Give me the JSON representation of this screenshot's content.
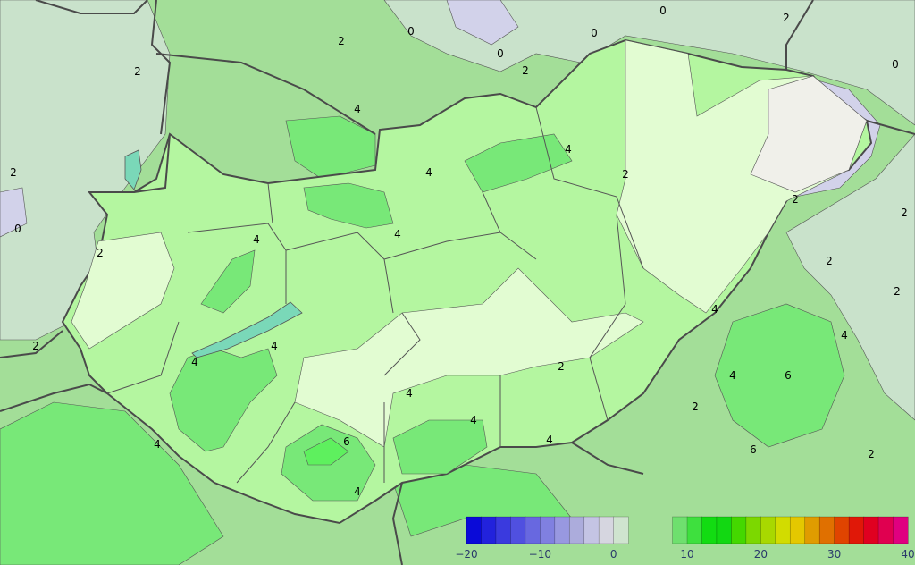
{
  "map": {
    "region": "Hungary",
    "colors": {
      "background_2_4": "#a3de98",
      "zone_0_2": "#c9e2cb",
      "zone_below_0": "#d2d2ea",
      "hungary_4_6": "#b4f6a0",
      "hungary_2_4": "#e2fcd2",
      "hungary_0_2": "#f0f0ea",
      "warm_6_8": "#78e878",
      "warm_8_10": "#5ef05e",
      "border": "#4a4a4a",
      "water": "#7ad8b8"
    },
    "contour_labels": [
      "0",
      "0",
      "0",
      "0",
      "2",
      "2",
      "2",
      "2",
      "2",
      "0",
      "2",
      "0",
      "4",
      "4",
      "2",
      "2",
      "4",
      "4",
      "4",
      "4",
      "4",
      "2",
      "2",
      "2",
      "4",
      "4",
      "6",
      "2",
      "2",
      "4",
      "6",
      "2",
      "2",
      "4",
      "4",
      "4",
      "6",
      "4",
      "4"
    ]
  },
  "colorbar": {
    "ticks": [
      "−20",
      "−10",
      "0",
      "10",
      "20",
      "30",
      "40"
    ],
    "tick_values": [
      -20,
      -10,
      0,
      10,
      20,
      30,
      40
    ],
    "range": [
      -20,
      40
    ],
    "step": 2,
    "colors": [
      "#0a0ad8",
      "#2222dc",
      "#3a3ade",
      "#5050e0",
      "#6868e0",
      "#8080e0",
      "#9898e0",
      "#acacdc",
      "#c4c4e4",
      "#d6d6e0",
      "#cfe4cf",
      "#a3de98",
      "#a3de98",
      "#a3de98",
      "#6ee06e",
      "#3ee03e",
      "#12dc12",
      "#12d812",
      "#44d800",
      "#7cd800",
      "#a8d800",
      "#d2dc00",
      "#e4c800",
      "#e09c00",
      "#e07000",
      "#e04400",
      "#e01808",
      "#e00020",
      "#e00050",
      "#e00080",
      "#e000a8",
      "#d800d0"
    ]
  }
}
